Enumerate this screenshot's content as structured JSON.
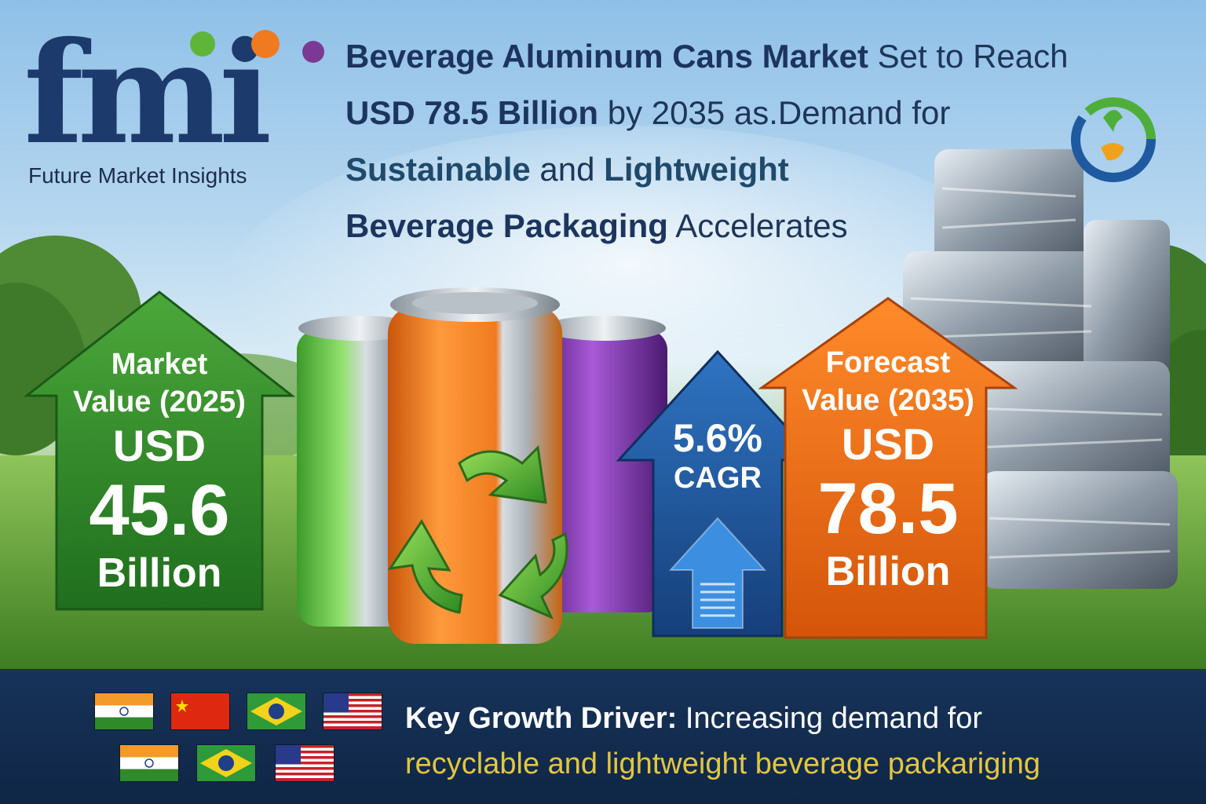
{
  "logo": {
    "letters": "fmi",
    "name": "Future Market Insights",
    "dot_colors": [
      "#5fb53a",
      "#f07a1f",
      "#7a3a94"
    ]
  },
  "headline": {
    "part1_bold": "Beverage Aluminum Cans Market",
    "part1_rest": " Set to Reach",
    "part2_bold": "USD 78.5 Billion",
    "part2_rest": " by 2035 as.Demand for",
    "part3_bold": "Sustainable",
    "part3_mid": " and ",
    "part3_bold2": "Lightweight",
    "part4_bold": "Beverage Packaging",
    "part4_rest": " Accelerates"
  },
  "market_value": {
    "label_line1": "Market",
    "label_line2": "Value (2025)",
    "currency": "USD",
    "value": "45.6",
    "unit": "Billion",
    "color": "#2e8a2a"
  },
  "cagr": {
    "value": "5.6%",
    "label": "CAGR",
    "color": "#1f5aa0"
  },
  "forecast_value": {
    "label_line1": "Forecast",
    "label_line2": "Value (2035)",
    "currency": "USD",
    "value": "78.5",
    "unit": "Billion",
    "color": "#ef6b12"
  },
  "cans": {
    "colors": [
      "#5cc24a",
      "#f07a1f",
      "#8a3ab0"
    ]
  },
  "bottom": {
    "driver_title": "Key Growth Driver:",
    "driver_text": " Increasing demand for",
    "driver_line2": "recyclable and lightweight beverage packariging"
  }
}
